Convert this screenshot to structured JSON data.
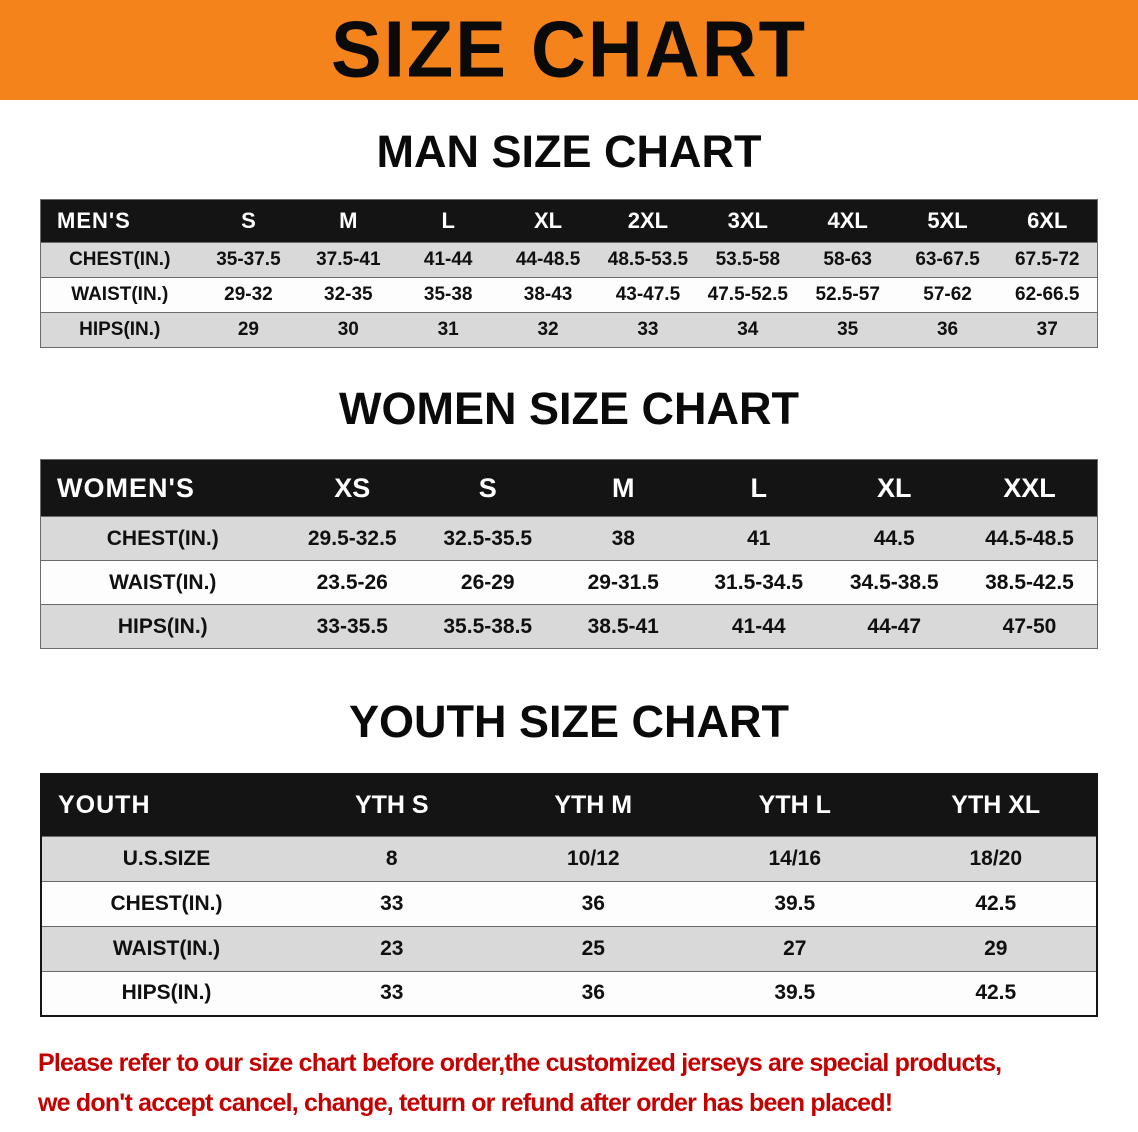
{
  "banner": {
    "title": "SIZE CHART"
  },
  "sections": [
    {
      "heading": "MAN SIZE CHART",
      "table": {
        "header": [
          "MEN'S",
          "S",
          "M",
          "L",
          "XL",
          "2XL",
          "3XL",
          "4XL",
          "5XL",
          "6XL"
        ],
        "rows": [
          {
            "label": "CHEST(IN.)",
            "values": [
              "35-37.5",
              "37.5-41",
              "41-44",
              "44-48.5",
              "48.5-53.5",
              "53.5-58",
              "58-63",
              "63-67.5",
              "67.5-72"
            ]
          },
          {
            "label": "WAIST(IN.)",
            "values": [
              "29-32",
              "32-35",
              "35-38",
              "38-43",
              "43-47.5",
              "47.5-52.5",
              "52.5-57",
              "57-62",
              "62-66.5"
            ]
          },
          {
            "label": "HIPS(IN.)",
            "values": [
              "29",
              "30",
              "31",
              "32",
              "33",
              "34",
              "35",
              "36",
              "37"
            ]
          }
        ]
      }
    },
    {
      "heading": "WOMEN SIZE CHART",
      "table": {
        "header": [
          "WOMEN'S",
          "XS",
          "S",
          "M",
          "L",
          "XL",
          "XXL"
        ],
        "rows": [
          {
            "label": "CHEST(IN.)",
            "values": [
              "29.5-32.5",
              "32.5-35.5",
              "38",
              "41",
              "44.5",
              "44.5-48.5"
            ]
          },
          {
            "label": "WAIST(IN.)",
            "values": [
              "23.5-26",
              "26-29",
              "29-31.5",
              "31.5-34.5",
              "34.5-38.5",
              "38.5-42.5"
            ]
          },
          {
            "label": "HIPS(IN.)",
            "values": [
              "33-35.5",
              "35.5-38.5",
              "38.5-41",
              "41-44",
              "44-47",
              "47-50"
            ]
          }
        ]
      }
    },
    {
      "heading": "YOUTH SIZE CHART",
      "table": {
        "header": [
          "YOUTH",
          "YTH S",
          "YTH M",
          "YTH L",
          "YTH XL"
        ],
        "rows": [
          {
            "label": "U.S.SIZE",
            "values": [
              "8",
              "10/12",
              "14/16",
              "18/20"
            ]
          },
          {
            "label": "CHEST(IN.)",
            "values": [
              "33",
              "36",
              "39.5",
              "42.5"
            ]
          },
          {
            "label": "WAIST(IN.)",
            "values": [
              "23",
              "25",
              "27",
              "29"
            ]
          },
          {
            "label": "HIPS(IN.)",
            "values": [
              "33",
              "36",
              "39.5",
              "42.5"
            ]
          }
        ]
      }
    }
  ],
  "footer": {
    "line1": "Please refer to our size chart before order,the customized jerseys are special products,",
    "line2": "we don't accept cancel, change, teturn or refund after order has been placed!"
  },
  "colors": {
    "banner_bg": "#F5831C",
    "header_bg": "#141414",
    "stripe": "#D9D9D9",
    "footer_text": "#C40000"
  }
}
